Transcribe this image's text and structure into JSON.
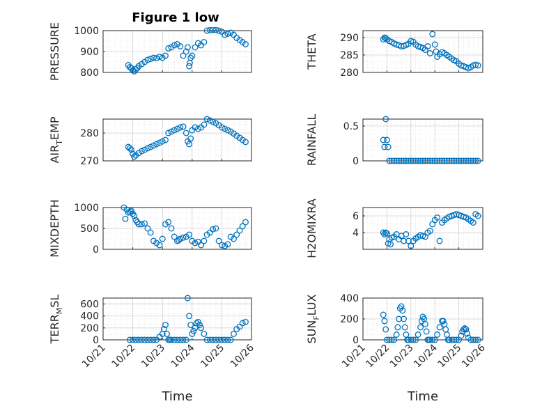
{
  "figure": {
    "title": "Figure 1 low",
    "marker_color": "#0072BD",
    "grid": "on (major + minor dotted)",
    "x_axis_common": {
      "range": [
        "10/21",
        "10/26"
      ],
      "ticks": [
        "10/21",
        "10/22",
        "10/23",
        "10/24",
        "10/25",
        "10/26"
      ],
      "label": "Time"
    }
  },
  "chart_data": [
    {
      "type": "scatter",
      "name": "PRESSURE",
      "ylabel": "PRESSURE",
      "ylim": [
        800,
        1000
      ],
      "yticks": [
        "800",
        "900",
        "1000"
      ],
      "xlim": [
        0,
        5
      ],
      "x": [
        0.85,
        0.9,
        0.95,
        1.0,
        1.05,
        1.1,
        1.15,
        1.2,
        1.3,
        1.4,
        1.5,
        1.6,
        1.7,
        1.8,
        1.9,
        2.0,
        2.1,
        2.2,
        2.3,
        2.4,
        2.5,
        2.6,
        2.7,
        2.8,
        2.85,
        2.9,
        2.92,
        2.95,
        3.0,
        3.1,
        3.2,
        3.3,
        3.4,
        3.5,
        3.6,
        3.7,
        3.8,
        3.9,
        4.0,
        4.1,
        4.2,
        4.3,
        4.4,
        4.5,
        4.6,
        4.7,
        4.8
      ],
      "y": [
        835,
        825,
        820,
        810,
        805,
        815,
        820,
        830,
        840,
        850,
        860,
        865,
        870,
        868,
        875,
        870,
        880,
        915,
        920,
        930,
        935,
        925,
        880,
        900,
        920,
        830,
        845,
        870,
        880,
        920,
        940,
        930,
        945,
        1000,
        1002,
        1004,
        1003,
        1000,
        995,
        980,
        985,
        990,
        980,
        965,
        955,
        945,
        935
      ]
    },
    {
      "type": "scatter",
      "name": "THETA",
      "ylabel": "THETA",
      "ylim": [
        280,
        292
      ],
      "yticks": [
        "280",
        "285",
        "290"
      ],
      "xlim": [
        0,
        5
      ],
      "x": [
        0.85,
        0.9,
        0.95,
        1.0,
        1.1,
        1.2,
        1.3,
        1.4,
        1.5,
        1.6,
        1.7,
        1.8,
        1.9,
        2.0,
        2.1,
        2.2,
        2.3,
        2.4,
        2.5,
        2.6,
        2.7,
        2.8,
        2.9,
        3.0,
        3.05,
        3.1,
        3.2,
        3.3,
        3.4,
        3.5,
        3.6,
        3.7,
        3.8,
        3.9,
        4.0,
        4.1,
        4.2,
        4.3,
        4.4,
        4.5,
        4.6,
        4.7,
        4.8
      ],
      "y": [
        289.5,
        290,
        289.8,
        289.5,
        289,
        288.7,
        288.3,
        288,
        287.8,
        287.5,
        287.6,
        287.9,
        288.2,
        289,
        288.8,
        288,
        287.5,
        287.3,
        287,
        286.5,
        287.5,
        285.5,
        291,
        288,
        286,
        284.5,
        285.2,
        285.8,
        285.5,
        285,
        284.5,
        284,
        283.5,
        283.2,
        282.5,
        282,
        281.8,
        281.5,
        281.2,
        281.5,
        282,
        282.2,
        282
      ]
    },
    {
      "type": "scatter",
      "name": "AIR_TEMP",
      "ylabel": "AIR_TEMP",
      "ylim": [
        270,
        285
      ],
      "yticks": [
        "270",
        "280"
      ],
      "xlim": [
        0,
        5
      ],
      "x": [
        0.85,
        0.9,
        0.95,
        1.0,
        1.05,
        1.1,
        1.2,
        1.3,
        1.4,
        1.5,
        1.6,
        1.7,
        1.8,
        1.9,
        2.0,
        2.1,
        2.2,
        2.3,
        2.4,
        2.5,
        2.6,
        2.7,
        2.8,
        2.85,
        2.9,
        2.95,
        3.0,
        3.1,
        3.2,
        3.3,
        3.4,
        3.5,
        3.6,
        3.7,
        3.8,
        3.9,
        4.0,
        4.1,
        4.2,
        4.3,
        4.4,
        4.5,
        4.6,
        4.7,
        4.8
      ],
      "y": [
        275,
        274.5,
        274,
        272.5,
        271.5,
        272,
        272.8,
        273.5,
        274,
        274.5,
        275,
        275.5,
        276,
        276.5,
        277,
        277.5,
        280,
        280.5,
        281,
        281.5,
        282,
        282.3,
        280,
        277,
        276,
        278,
        281,
        282,
        281.5,
        282,
        283,
        285,
        284.5,
        284,
        283.5,
        282.8,
        282,
        281.5,
        281,
        280.5,
        279.8,
        279,
        278.3,
        277.5,
        276.8
      ]
    },
    {
      "type": "scatter",
      "name": "RAINFALL",
      "ylabel": "RAINFALL",
      "ylim": [
        0,
        0.6
      ],
      "yticks": [
        "0",
        "0.5"
      ],
      "xlim": [
        0,
        5
      ],
      "x": [
        0.85,
        0.9,
        0.95,
        1.0,
        1.05,
        1.1,
        1.2,
        1.3,
        1.4,
        1.5,
        1.6,
        1.7,
        1.8,
        1.9,
        2.0,
        2.1,
        2.2,
        2.3,
        2.4,
        2.5,
        2.6,
        2.7,
        2.8,
        2.9,
        3.0,
        3.1,
        3.2,
        3.3,
        3.4,
        3.5,
        3.6,
        3.7,
        3.8,
        3.9,
        4.0,
        4.1,
        4.2,
        4.3,
        4.4,
        4.5,
        4.6,
        4.7,
        4.8
      ],
      "y": [
        0.3,
        0.2,
        0.6,
        0.3,
        0.2,
        0,
        0,
        0,
        0,
        0,
        0,
        0,
        0,
        0,
        0,
        0,
        0,
        0,
        0,
        0,
        0,
        0,
        0,
        0,
        0,
        0,
        0,
        0,
        0,
        0,
        0,
        0,
        0,
        0,
        0,
        0,
        0,
        0,
        0,
        0,
        0,
        0,
        0
      ]
    },
    {
      "type": "scatter",
      "name": "MIXDEPTH",
      "ylabel": "MIXDEPTH",
      "ylim": [
        0,
        1000
      ],
      "yticks": [
        "0",
        "500",
        "1000"
      ],
      "xlim": [
        0,
        5
      ],
      "x": [
        0.7,
        0.75,
        0.8,
        0.85,
        0.9,
        0.95,
        1.0,
        1.05,
        1.1,
        1.15,
        1.2,
        1.3,
        1.4,
        1.5,
        1.6,
        1.7,
        1.8,
        1.9,
        2.0,
        2.1,
        2.2,
        2.3,
        2.4,
        2.5,
        2.55,
        2.6,
        2.7,
        2.8,
        2.9,
        3.0,
        3.1,
        3.2,
        3.3,
        3.4,
        3.5,
        3.6,
        3.7,
        3.8,
        3.9,
        4.0,
        4.1,
        4.2,
        4.3,
        4.4,
        4.5,
        4.6,
        4.7,
        4.8
      ],
      "y": [
        1000,
        730,
        950,
        880,
        900,
        920,
        850,
        800,
        700,
        650,
        600,
        600,
        620,
        500,
        400,
        200,
        150,
        100,
        250,
        600,
        650,
        500,
        300,
        200,
        220,
        250,
        280,
        300,
        350,
        200,
        150,
        180,
        100,
        200,
        350,
        400,
        480,
        500,
        200,
        100,
        80,
        120,
        300,
        250,
        350,
        450,
        550,
        650
      ]
    },
    {
      "type": "scatter",
      "name": "H2OMIXRA",
      "ylabel": "H2OMIXRA",
      "ylim": [
        2,
        7
      ],
      "yticks": [
        "4",
        "6"
      ],
      "xlim": [
        0,
        5
      ],
      "x": [
        0.85,
        0.9,
        0.95,
        1.0,
        1.05,
        1.1,
        1.15,
        1.2,
        1.3,
        1.4,
        1.5,
        1.6,
        1.7,
        1.8,
        1.9,
        2.0,
        2.1,
        2.2,
        2.3,
        2.4,
        2.5,
        2.6,
        2.7,
        2.8,
        2.9,
        3.0,
        3.1,
        3.2,
        3.3,
        3.4,
        3.5,
        3.6,
        3.7,
        3.8,
        3.9,
        4.0,
        4.1,
        4.2,
        4.3,
        4.4,
        4.5,
        4.6,
        4.7,
        4.8
      ],
      "y": [
        4,
        3.8,
        4,
        3.9,
        2.7,
        3.2,
        2.6,
        3.4,
        3.5,
        3.8,
        3.2,
        3.6,
        3,
        3.8,
        3,
        2.4,
        3,
        3.3,
        3.5,
        3.7,
        3.6,
        3.5,
        4,
        4.2,
        5,
        5.5,
        5.8,
        3,
        5.2,
        5.5,
        5.7,
        5.9,
        6,
        6.1,
        6.2,
        6.1,
        6,
        5.9,
        5.8,
        5.6,
        5.4,
        5.2,
        6.2,
        6
      ]
    },
    {
      "type": "scatter",
      "name": "TERR_MSL",
      "ylabel": "TERR_MSL",
      "ylim": [
        0,
        700
      ],
      "yticks": [
        "0",
        "200",
        "400",
        "600"
      ],
      "xlim": [
        0,
        5
      ],
      "x": [
        0.9,
        1.0,
        1.1,
        1.2,
        1.3,
        1.4,
        1.5,
        1.6,
        1.7,
        1.8,
        1.9,
        2.0,
        2.05,
        2.1,
        2.15,
        2.2,
        2.25,
        2.3,
        2.4,
        2.5,
        2.6,
        2.7,
        2.8,
        2.85,
        2.9,
        2.95,
        3.0,
        3.05,
        3.1,
        3.15,
        3.2,
        3.25,
        3.3,
        3.4,
        3.5,
        3.6,
        3.7,
        3.8,
        3.9,
        4.0,
        4.1,
        4.2,
        4.3,
        4.4,
        4.5,
        4.6,
        4.7,
        4.8
      ],
      "y": [
        0,
        0,
        0,
        0,
        0,
        0,
        0,
        0,
        0,
        0,
        50,
        100,
        180,
        250,
        100,
        0,
        0,
        0,
        0,
        0,
        0,
        0,
        0,
        700,
        400,
        250,
        100,
        150,
        200,
        280,
        300,
        250,
        200,
        100,
        0,
        0,
        0,
        0,
        0,
        0,
        0,
        0,
        0,
        100,
        180,
        220,
        280,
        300
      ]
    },
    {
      "type": "scatter",
      "name": "SUN_FLUX",
      "ylabel": "SUN_FLUX",
      "ylim": [
        0,
        400
      ],
      "yticks": [
        "0",
        "200",
        "400"
      ],
      "xlim": [
        0,
        5
      ],
      "x": [
        0.85,
        0.9,
        0.95,
        1.0,
        1.1,
        1.2,
        1.3,
        1.4,
        1.45,
        1.5,
        1.55,
        1.6,
        1.65,
        1.7,
        1.75,
        1.8,
        1.85,
        1.9,
        2.0,
        2.1,
        2.2,
        2.3,
        2.4,
        2.45,
        2.5,
        2.55,
        2.6,
        2.65,
        2.7,
        2.75,
        2.8,
        2.9,
        3.0,
        3.1,
        3.2,
        3.3,
        3.35,
        3.4,
        3.45,
        3.5,
        3.55,
        3.6,
        3.7,
        3.8,
        3.9,
        4.0,
        4.1,
        4.15,
        4.2,
        4.25,
        4.3,
        4.35,
        4.4,
        4.5,
        4.6,
        4.7,
        4.8
      ],
      "y": [
        240,
        180,
        100,
        0,
        0,
        0,
        0,
        50,
        120,
        200,
        300,
        320,
        280,
        200,
        120,
        50,
        0,
        0,
        0,
        0,
        0,
        50,
        120,
        180,
        220,
        200,
        150,
        80,
        0,
        0,
        0,
        0,
        0,
        50,
        120,
        180,
        180,
        150,
        100,
        50,
        0,
        0,
        0,
        0,
        0,
        0,
        40,
        80,
        100,
        110,
        100,
        60,
        20,
        0,
        0,
        0,
        0
      ]
    }
  ],
  "panels_layout_note": "2 columns x 4 rows of scatter plots sharing the same Time axis"
}
